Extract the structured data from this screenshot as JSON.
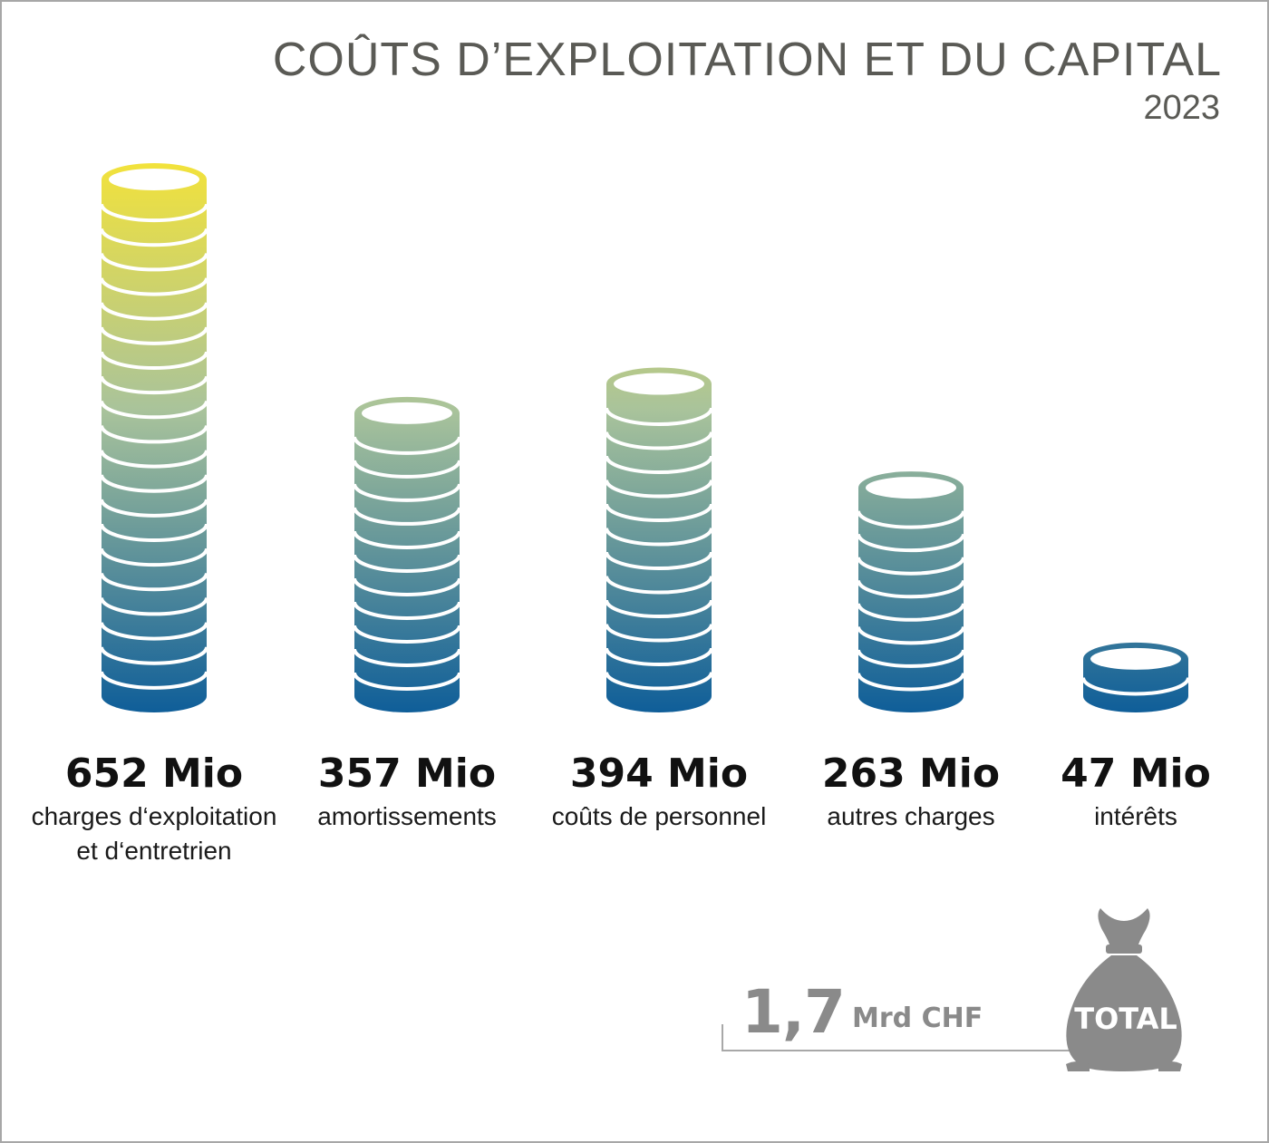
{
  "header": {
    "title": "COÛTS D’EXPLOITATION ET DU CAPITAL",
    "subtitle": "2023"
  },
  "chart_data": {
    "type": "bar",
    "title": "COÛTS D’EXPLOITATION ET DU CAPITAL",
    "subtitle": "2023",
    "categories": [
      "charges d‘exploitation et d‘entretrien",
      "amortissements",
      "coûts de personnel",
      "autres charges",
      "intérêts"
    ],
    "values": [
      652,
      357,
      394,
      263,
      47
    ],
    "value_labels": [
      "652 Mio",
      "357 Mio",
      "394 Mio",
      "263 Mio",
      "47 Mio"
    ],
    "category_lines": [
      [
        "charges d‘exploitation",
        "et d‘entretrien"
      ],
      [
        "amortissements"
      ],
      [
        "coûts de personnel"
      ],
      [
        "autres charges"
      ],
      [
        "intérêts"
      ]
    ],
    "unit": "Mio",
    "grid": false,
    "colors": {
      "top": "#f2e23b",
      "mid": "#a9c39b",
      "bottom": "#0f5e99"
    }
  },
  "total": {
    "value": "1,7",
    "unit": "Mrd CHF",
    "badge": "TOTAL",
    "icon": "money-bag-icon",
    "color": "#8a8a8a"
  }
}
